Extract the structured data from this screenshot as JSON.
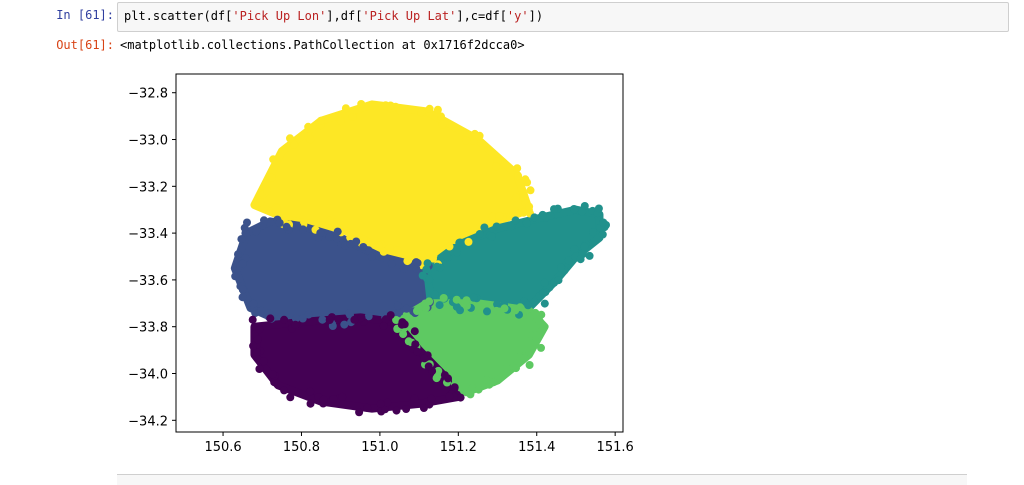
{
  "cell": {
    "in_prompt": "In [61]:",
    "out_prompt": "Out[61]:",
    "code_parts": [
      {
        "t": "plt.scatter(df[",
        "c": "plain"
      },
      {
        "t": "'Pick Up Lon'",
        "c": "str"
      },
      {
        "t": "],df[",
        "c": "plain"
      },
      {
        "t": "'Pick Up Lat'",
        "c": "str"
      },
      {
        "t": "],c=df[",
        "c": "plain"
      },
      {
        "t": "'y'",
        "c": "str"
      },
      {
        "t": "])",
        "c": "plain"
      }
    ],
    "output_text": "<matplotlib.collections.PathCollection at 0x1716f2dcca0>"
  },
  "chart_data": {
    "type": "scatter",
    "title": "",
    "xlabel": "",
    "ylabel": "",
    "xlim": [
      150.48,
      151.62
    ],
    "ylim": [
      -34.25,
      -32.72
    ],
    "xticks": [
      150.6,
      150.8,
      151.0,
      151.2,
      151.4,
      151.6
    ],
    "xtick_labels": [
      "150.6",
      "150.8",
      "151.0",
      "151.2",
      "151.4",
      "151.6"
    ],
    "yticks": [
      -32.8,
      -33.0,
      -33.2,
      -33.4,
      -33.6,
      -33.8,
      -34.0,
      -34.2
    ],
    "ytick_labels": [
      "−32.8",
      "−33.0",
      "−33.2",
      "−33.4",
      "−33.6",
      "−33.8",
      "−34.0",
      "−34.2"
    ],
    "grid": false,
    "clusters": [
      {
        "color": "#fde725",
        "region": [
          [
            150.68,
            -33.28
          ],
          [
            150.75,
            -33.05
          ],
          [
            150.85,
            -32.92
          ],
          [
            150.98,
            -32.85
          ],
          [
            151.12,
            -32.88
          ],
          [
            151.25,
            -33.0
          ],
          [
            151.35,
            -33.15
          ],
          [
            151.38,
            -33.3
          ],
          [
            151.25,
            -33.38
          ],
          [
            151.12,
            -33.52
          ],
          [
            151.02,
            -33.48
          ],
          [
            150.9,
            -33.38
          ],
          [
            150.78,
            -33.35
          ]
        ]
      },
      {
        "color": "#3b528b",
        "region": [
          [
            150.66,
            -33.4
          ],
          [
            150.72,
            -33.35
          ],
          [
            150.8,
            -33.37
          ],
          [
            150.9,
            -33.42
          ],
          [
            151.0,
            -33.5
          ],
          [
            151.12,
            -33.55
          ],
          [
            151.12,
            -33.72
          ],
          [
            151.02,
            -33.75
          ],
          [
            150.9,
            -33.77
          ],
          [
            150.75,
            -33.78
          ],
          [
            150.67,
            -33.72
          ],
          [
            150.63,
            -33.55
          ]
        ]
      },
      {
        "color": "#21918c",
        "region": [
          [
            151.12,
            -33.55
          ],
          [
            151.2,
            -33.45
          ],
          [
            151.3,
            -33.38
          ],
          [
            151.42,
            -33.33
          ],
          [
            151.5,
            -33.3
          ],
          [
            151.56,
            -33.32
          ],
          [
            151.56,
            -33.42
          ],
          [
            151.5,
            -33.5
          ],
          [
            151.45,
            -33.6
          ],
          [
            151.38,
            -33.72
          ],
          [
            151.3,
            -33.72
          ],
          [
            151.2,
            -33.7
          ],
          [
            151.13,
            -33.7
          ]
        ]
      },
      {
        "color": "#5ec962",
        "region": [
          [
            151.04,
            -33.78
          ],
          [
            151.12,
            -33.7
          ],
          [
            151.25,
            -33.7
          ],
          [
            151.38,
            -33.73
          ],
          [
            151.42,
            -33.8
          ],
          [
            151.38,
            -33.92
          ],
          [
            151.3,
            -34.03
          ],
          [
            151.22,
            -34.08
          ],
          [
            151.16,
            -34.02
          ],
          [
            151.08,
            -33.9
          ]
        ]
      },
      {
        "color": "#440154",
        "region": [
          [
            150.68,
            -33.8
          ],
          [
            150.8,
            -33.78
          ],
          [
            150.95,
            -33.76
          ],
          [
            151.04,
            -33.78
          ],
          [
            151.1,
            -33.9
          ],
          [
            151.17,
            -34.02
          ],
          [
            151.2,
            -34.1
          ],
          [
            151.1,
            -34.13
          ],
          [
            150.98,
            -34.15
          ],
          [
            150.85,
            -34.12
          ],
          [
            150.74,
            -34.05
          ],
          [
            150.68,
            -33.92
          ]
        ]
      }
    ]
  }
}
